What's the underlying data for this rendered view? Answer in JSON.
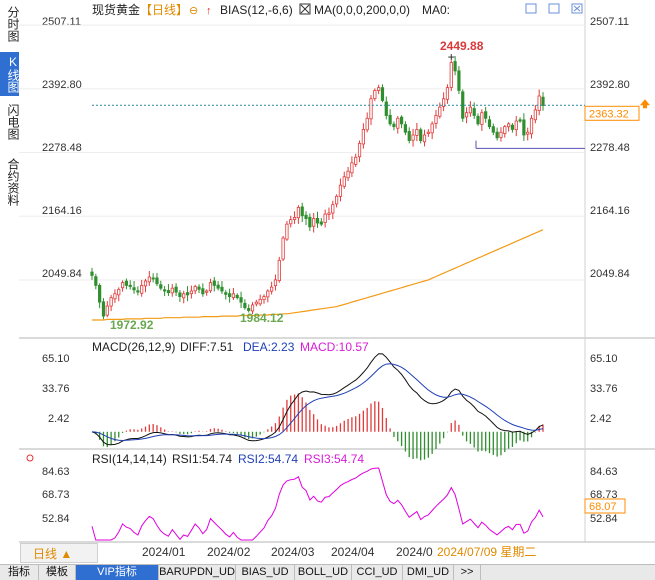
{
  "left_tabs": [
    "分时图",
    "K线图",
    "闪电图",
    "合约资料"
  ],
  "active_left_tab": 1,
  "period_label": "日线 ▲",
  "header": {
    "instrument": "现货黄金",
    "period_tag": "【日线】",
    "bias_label": "BIAS(12,-6,6)",
    "ma_label": "MA(0,0,0,200,0,0)",
    "ma0_label": "MA0:"
  },
  "price_axis": [
    "2507.11",
    "2392.80",
    "2278.48",
    "2164.16",
    "2049.84"
  ],
  "current_price": "2363.32",
  "high_label": "2449.88",
  "low_label_1": "1972.92",
  "low_label_2": "1984.12",
  "macd": {
    "title": "MACD(26,12,9)",
    "diff": "DIFF:7.51",
    "dea": "DEA:2.23",
    "macd": "MACD:10.57",
    "axis": [
      "65.10",
      "33.76",
      "2.42"
    ]
  },
  "rsi": {
    "title": "RSI(14,14,14)",
    "rsi1": "RSI1:54.74",
    "rsi2": "RSI2:54.74",
    "rsi3": "RSI3:54.74",
    "axis": [
      "84.63",
      "68.73",
      "52.84"
    ],
    "current": "68.07"
  },
  "x_axis": [
    "2024/01",
    "2024/02",
    "2024/03",
    "2024/04",
    "2024/0",
    "2024/07/09 星期二"
  ],
  "bottom_tabs": [
    "指标",
    "模板",
    "VIP指标",
    "BARUPDN_UD",
    "BIAS_UD",
    "BOLL_UD",
    "CCI_UD",
    "DMI_UD",
    ">>"
  ],
  "active_bottom_tab": 2,
  "colors": {
    "up": "#e23b3b",
    "down": "#2f8f2f",
    "ma200": "#f29b16",
    "dea": "#1f3fb5",
    "macd_text": "#d81bd8",
    "rsi": "#e000e0",
    "accent": "#2f6fd1",
    "current": "#ff8c00"
  },
  "chart_data": {
    "type": "candlestick",
    "y_axis_ticks": [
      2507.11,
      2392.8,
      2278.48,
      2164.16,
      2049.84
    ],
    "ylim": [
      1960,
      2520
    ],
    "current_price": 2363.32,
    "high": 2449.88,
    "lows": [
      1972.92,
      1984.12
    ],
    "closes": [
      2058,
      2040,
      2010,
      1985,
      2003,
      2018,
      2025,
      2033,
      2045,
      2040,
      2038,
      2032,
      2028,
      2040,
      2048,
      2055,
      2052,
      2043,
      2035,
      2030,
      2027,
      2035,
      2028,
      2020,
      2025,
      2023,
      2030,
      2038,
      2033,
      2025,
      2030,
      2045,
      2040,
      2035,
      2030,
      2024,
      2020,
      2025,
      2018,
      2010,
      2000,
      1995,
      2005,
      2010,
      2015,
      2020,
      2030,
      2037,
      2050,
      2085,
      2125,
      2150,
      2158,
      2162,
      2180,
      2165,
      2160,
      2145,
      2160,
      2152,
      2150,
      2168,
      2170,
      2185,
      2200,
      2220,
      2235,
      2245,
      2260,
      2270,
      2295,
      2320,
      2340,
      2375,
      2390,
      2395,
      2372,
      2345,
      2330,
      2325,
      2340,
      2330,
      2315,
      2300,
      2310,
      2320,
      2300,
      2310,
      2315,
      2330,
      2345,
      2360,
      2375,
      2395,
      2440,
      2425,
      2390,
      2340,
      2350,
      2360,
      2345,
      2330,
      2350,
      2340,
      2325,
      2315,
      2305,
      2315,
      2325,
      2330,
      2320,
      2335,
      2335,
      2310,
      2315,
      2340,
      2355,
      2380,
      2363
    ],
    "ma200": [
      1978,
      1978,
      1978,
      1978,
      1979,
      1979,
      1979,
      1979,
      1979,
      1980,
      1980,
      1980,
      1980,
      1980,
      1981,
      1981,
      1981,
      1981,
      1981,
      1982,
      1982,
      1982,
      1982,
      1982,
      1983,
      1983,
      1983,
      1983,
      1983,
      1984,
      1984,
      1984,
      1984,
      1984,
      1985,
      1985,
      1985,
      1985,
      1985,
      1986,
      1986,
      1986,
      1986,
      1986,
      1987,
      1987,
      1987,
      1988,
      1988,
      1988,
      1989,
      1989,
      1990,
      1991,
      1992,
      1993,
      1994,
      1995,
      1996,
      1997,
      1998,
      1999,
      2000,
      2001,
      2002,
      2004,
      2006,
      2008,
      2010,
      2012,
      2014,
      2016,
      2018,
      2020,
      2022,
      2024,
      2026,
      2028,
      2030,
      2032,
      2034,
      2036,
      2038,
      2040,
      2042,
      2044,
      2046,
      2048,
      2050,
      2053,
      2056,
      2059,
      2062,
      2065,
      2068,
      2071,
      2074,
      2077,
      2080,
      2083,
      2086,
      2089,
      2092,
      2095,
      2098,
      2101,
      2104,
      2107,
      2110,
      2113,
      2116,
      2119,
      2122,
      2125,
      2128,
      2131,
      2134,
      2137,
      2140
    ],
    "macd": {
      "diff": 7.51,
      "dea": 2.23,
      "macd": 10.57,
      "ylim": [
        -15,
        70
      ],
      "ticks": [
        65.1,
        33.76,
        2.42
      ]
    },
    "rsi": {
      "rsi1": 54.74,
      "rsi2": 54.74,
      "rsi3": 54.74,
      "current": 68.07,
      "ylim": [
        40,
        92
      ],
      "ticks": [
        84.63,
        68.73,
        52.84
      ]
    },
    "x_labels": [
      "2024/01",
      "2024/02",
      "2024/03",
      "2024/04",
      "2024/0",
      "2024/07/09 星期二"
    ]
  }
}
